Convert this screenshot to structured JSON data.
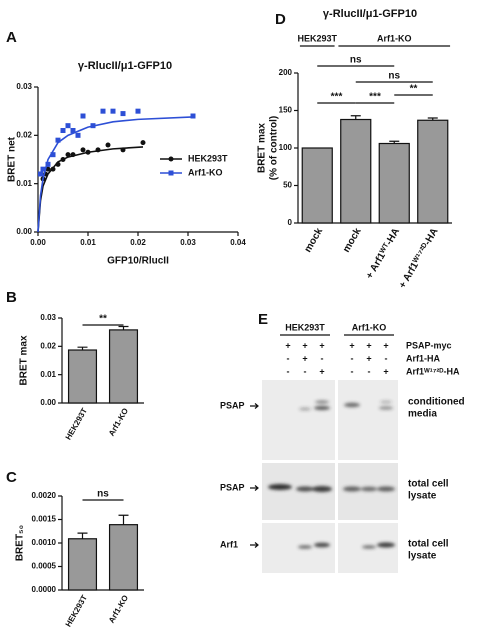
{
  "chart_data": [
    {
      "type": "scatter",
      "panel": "A",
      "title": "γ-RlucII/μ1-GFP10",
      "xlabel": "GFP10/RlucII",
      "ylabel": "BRET net",
      "xlim": [
        0,
        0.04
      ],
      "xticks": [
        {
          "value": 0,
          "label": "0.00"
        },
        0.01,
        0.02,
        0.03,
        0.04
      ],
      "ylim": [
        0,
        0.03
      ],
      "yticks": [
        {
          "value": 0,
          "label": "0.00"
        },
        0.01,
        0.02,
        0.03
      ],
      "series": [
        {
          "name": "HEK293T",
          "color": "#111111",
          "marker": "circle",
          "x": [
            0.001,
            0.0015,
            0.002,
            0.003,
            0.004,
            0.005,
            0.006,
            0.007,
            0.009,
            0.01,
            0.012,
            0.014,
            0.017,
            0.021
          ],
          "values": [
            0.011,
            0.012,
            0.013,
            0.013,
            0.014,
            0.015,
            0.016,
            0.016,
            0.017,
            0.0165,
            0.017,
            0.018,
            0.017,
            0.0185
          ],
          "fit_x": [
            0,
            0.0005,
            0.001,
            0.002,
            0.004,
            0.006,
            0.01,
            0.015,
            0.021
          ],
          "fit_values": [
            0,
            0.0065,
            0.0095,
            0.012,
            0.0145,
            0.0155,
            0.0165,
            0.0172,
            0.0176
          ]
        },
        {
          "name": "Arf1-KO",
          "color": "#2d4fd6",
          "marker": "square",
          "x": [
            0.0005,
            0.001,
            0.002,
            0.003,
            0.004,
            0.005,
            0.006,
            0.007,
            0.008,
            0.009,
            0.011,
            0.013,
            0.015,
            0.017,
            0.02,
            0.031
          ],
          "values": [
            0.012,
            0.013,
            0.014,
            0.016,
            0.019,
            0.021,
            0.022,
            0.021,
            0.02,
            0.024,
            0.022,
            0.025,
            0.025,
            0.0245,
            0.025,
            0.024
          ],
          "fit_x": [
            0,
            0.0005,
            0.001,
            0.002,
            0.004,
            0.006,
            0.01,
            0.015,
            0.02,
            0.031
          ],
          "fit_values": [
            0,
            0.0075,
            0.011,
            0.015,
            0.0185,
            0.02,
            0.0217,
            0.0228,
            0.0233,
            0.0238
          ]
        }
      ],
      "legend": "right"
    },
    {
      "type": "bar",
      "panel": "B",
      "ylabel": "BRET max",
      "categories": [
        "HEK293T",
        "Arf1-KO"
      ],
      "values": [
        0.0187,
        0.0258
      ],
      "errors": [
        0.001,
        0.0012
      ],
      "color": "#999999",
      "ylim": [
        0,
        0.03
      ],
      "yticks": [
        {
          "value": 0,
          "label": "0.00"
        },
        0.01,
        0.02,
        0.03
      ],
      "annotations": [
        {
          "text": "**",
          "from": 0,
          "to": 1
        }
      ]
    },
    {
      "type": "bar",
      "panel": "C",
      "ylabel": "BRET₅₀",
      "categories": [
        "HEK293T",
        "Arf1-KO"
      ],
      "values": [
        0.00109,
        0.00139
      ],
      "errors": [
        0.00012,
        0.0002
      ],
      "color": "#999999",
      "ylim": [
        0,
        0.002
      ],
      "yticks": [
        {
          "value": 0,
          "label": "0.0000"
        },
        {
          "value": 0.0005,
          "label": "0.0005"
        },
        {
          "value": 0.001,
          "label": "0.0010"
        },
        {
          "value": 0.0015,
          "label": "0.0015"
        },
        {
          "value": 0.002,
          "label": "0.0020"
        }
      ],
      "annotations": [
        {
          "text": "ns",
          "from": 0,
          "to": 1
        }
      ]
    },
    {
      "type": "bar",
      "panel": "D",
      "title": "γ-RlucII/μ1-GFP10",
      "ylabel": [
        "BRET max",
        "(% of control)"
      ],
      "categories": [
        "mock",
        "mock",
        "+ Arf1ᵂᵀ-HA",
        "+ Arf1ᵂ¹⁷²ᴰ-HA"
      ],
      "values": [
        100,
        138,
        106,
        137
      ],
      "errors": [
        null,
        5,
        3,
        3
      ],
      "color": "#999999",
      "ylim": [
        0,
        200
      ],
      "yticks": [
        0,
        50,
        100,
        150,
        200
      ],
      "groups": [
        {
          "name": "HEK293T",
          "from": 0,
          "to": 0
        },
        {
          "name": "Arf1-KO",
          "from": 1,
          "to": 3
        }
      ],
      "annotations": [
        {
          "text": "***",
          "from": 0,
          "to": 1
        },
        {
          "text": "***",
          "from": 1,
          "to": 2
        },
        {
          "text": "**",
          "from": 2,
          "to": 3
        },
        {
          "text": "ns",
          "from": 0,
          "to": 2
        },
        {
          "text": "ns",
          "from": 1,
          "to": 3
        }
      ]
    }
  ],
  "blot": {
    "panel": "E",
    "groups": [
      "HEK293T",
      "Arf1-KO"
    ],
    "conditions": [
      {
        "name": "PSAP-myc",
        "signs": [
          "+",
          "+",
          "+",
          "+",
          "+",
          "+"
        ]
      },
      {
        "name": "Arf1-HA",
        "signs": [
          "-",
          "+",
          "-",
          "-",
          "+",
          "-"
        ]
      },
      {
        "name": "Arf1ᵂ¹⁷²ᴰ-HA",
        "signs": [
          "-",
          "-",
          "+",
          "-",
          "-",
          "+"
        ]
      }
    ],
    "blots": [
      {
        "label": "PSAP",
        "fraction": [
          "conditioned",
          "media"
        ]
      },
      {
        "label": "PSAP",
        "fraction": [
          "total cell",
          "lysate"
        ]
      },
      {
        "label": "Arf1",
        "fraction": [
          "total cell",
          "lysate"
        ]
      }
    ]
  }
}
